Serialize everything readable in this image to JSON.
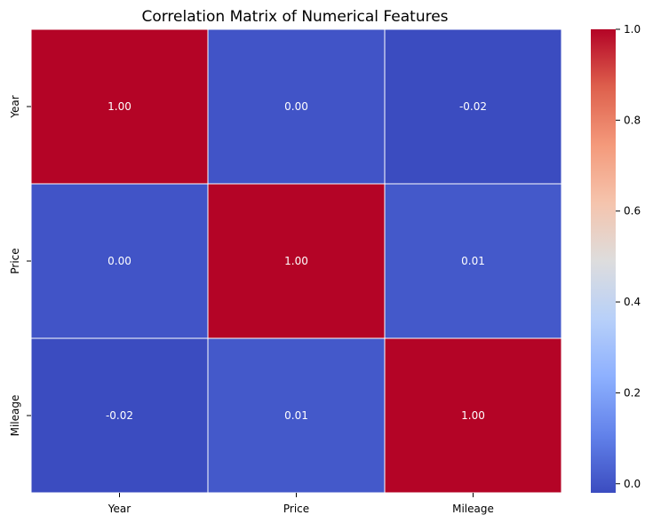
{
  "chart_data": {
    "type": "heatmap",
    "title": "Correlation Matrix of Numerical Features",
    "x_labels": [
      "Year",
      "Price",
      "Mileage"
    ],
    "y_labels": [
      "Year",
      "Price",
      "Mileage"
    ],
    "values": [
      [
        1.0,
        0.0,
        -0.02
      ],
      [
        0.0,
        1.0,
        0.01
      ],
      [
        -0.02,
        0.01,
        1.0
      ]
    ],
    "annotations": [
      [
        "1.00",
        "0.00",
        "-0.02"
      ],
      [
        "0.00",
        "1.00",
        "0.01"
      ],
      [
        "-0.02",
        "0.01",
        "1.00"
      ]
    ],
    "colormap": "coolwarm",
    "colorbar": {
      "range": [
        -0.02,
        1.0
      ],
      "ticks": [
        0.0,
        0.2,
        0.4,
        0.6,
        0.8,
        1.0
      ],
      "tick_labels": [
        "0.0",
        "0.2",
        "0.4",
        "0.6",
        "0.8",
        "1.0"
      ]
    },
    "cell_separator_color": "#ffffff"
  }
}
